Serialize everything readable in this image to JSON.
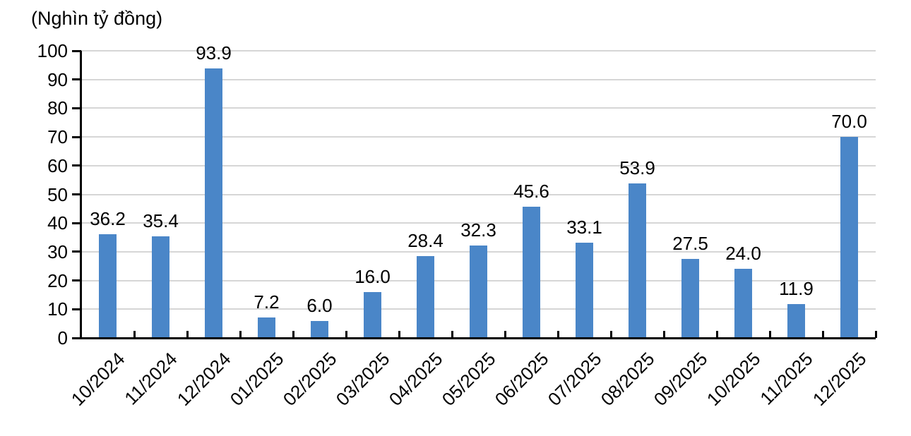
{
  "chart_data": {
    "type": "bar",
    "title": "(Nghìn tỷ đồng)",
    "categories": [
      "10/2024",
      "11/2024",
      "12/2024",
      "01/2025",
      "02/2025",
      "03/2025",
      "04/2025",
      "05/2025",
      "06/2025",
      "07/2025",
      "08/2025",
      "09/2025",
      "10/2025",
      "11/2025",
      "12/2025"
    ],
    "values": [
      36.2,
      35.4,
      93.9,
      7.2,
      6.0,
      16.0,
      28.4,
      32.3,
      45.6,
      33.1,
      53.9,
      27.5,
      24.0,
      11.9,
      70.0
    ],
    "value_labels": [
      "36.2",
      "35.4",
      "93.9",
      "7.2",
      "6.0",
      "16.0",
      "28.4",
      "32.3",
      "45.6",
      "33.1",
      "53.9",
      "27.5",
      "24.0",
      "11.9",
      "70.0"
    ],
    "xlabel": "",
    "ylabel": "(Nghìn tỷ đồng)",
    "ylim": [
      0,
      100
    ],
    "ytick_interval": 10,
    "ytick_labels": [
      "0",
      "10",
      "20",
      "30",
      "40",
      "50",
      "60",
      "70",
      "80",
      "90",
      "100"
    ],
    "grid": true,
    "legend": "none",
    "colors": {
      "bar": "#4A86C8",
      "gridline": "#D6D6D6",
      "axis": "#000000",
      "text": "#000000",
      "background": "#FFFFFF"
    }
  }
}
